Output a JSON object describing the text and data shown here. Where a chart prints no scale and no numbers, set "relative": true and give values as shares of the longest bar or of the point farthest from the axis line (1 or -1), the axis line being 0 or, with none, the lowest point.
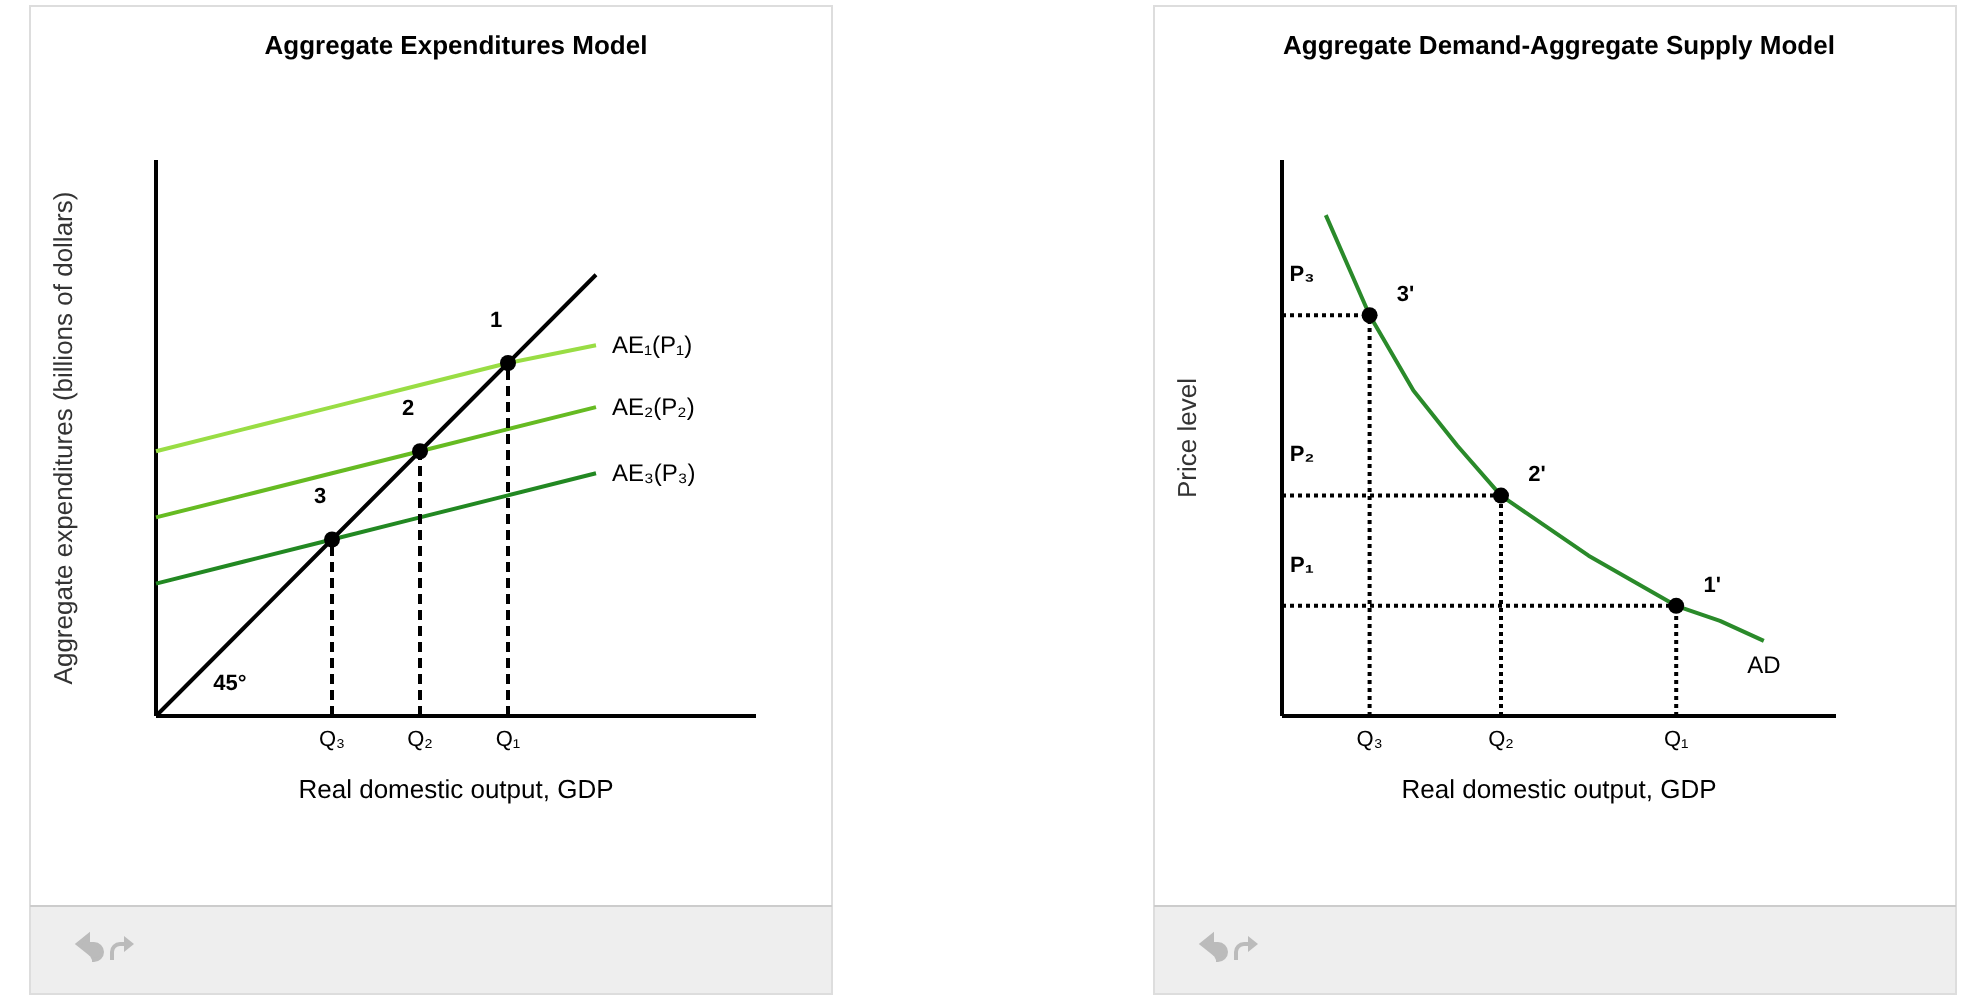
{
  "chart_data": [
    {
      "type": "line",
      "title": "Aggregate Expenditures Model",
      "xlabel": "Real domestic output, GDP",
      "ylabel": "Aggregate expenditures (billions of dollars)",
      "relative": true,
      "tick_labels": "x",
      "categories": [
        null,
        null,
        "Q₃",
        "Q₂",
        "Q₁",
        null
      ],
      "series": [
        {
          "color": "#99dd44",
          "values": [
            0.6,
            0.65,
            0.7,
            0.75,
            0.8,
            0.84
          ],
          "name": "AE₁(P₁)"
        },
        {
          "color": "#66bb22",
          "values": [
            0.45,
            0.5,
            0.55,
            0.6,
            0.65,
            0.7
          ],
          "name": "AE₂(P₂)"
        },
        {
          "color": "#228822",
          "values": [
            0.3,
            0.35,
            0.4,
            0.45,
            0.5,
            0.55
          ],
          "name": "AE₃(P₃)"
        },
        {
          "color": "#000000",
          "values": [
            0,
            0.2,
            0.4,
            0.6,
            0.8,
            1
          ]
        },
        {
          "type": "lollipop",
          "color": "#000000",
          "line_style": "dashed",
          "marker": "circle",
          "values": [
            null,
            null,
            0.4,
            0.6,
            0.8,
            null
          ]
        }
      ],
      "annotations": [
        {
          "text": "1",
          "x": "Q₁",
          "y": 0.8
        },
        {
          "text": "2",
          "x": "Q₂",
          "y": 0.6
        },
        {
          "text": "3",
          "x": "Q₃",
          "y": 0.4
        },
        "45°"
      ]
    },
    {
      "type": "line",
      "title": "Aggregate Demand-Aggregate Supply Model",
      "xlabel": "Real domestic output, GDP",
      "ylabel": "Price level",
      "relative": true,
      "tick_labels": "x",
      "categories": [
        null,
        null,
        "Q₃",
        null,
        null,
        "Q₂",
        null,
        null,
        null,
        "Q₁",
        null,
        null,
        null
      ],
      "series": [
        {
          "color": "#2a8a2a",
          "name": "AD",
          "values": [
            null,
            1,
            0.8,
            0.65,
            0.54,
            0.44,
            0.38,
            0.32,
            0.27,
            0.22,
            0.19,
            0.15,
            null
          ]
        },
        {
          "color": "#000000",
          "line_style": "dotted",
          "values": [
            0.8,
            0.8,
            0.8,
            null,
            null,
            null,
            null,
            null,
            null,
            null,
            null,
            null,
            null
          ]
        },
        {
          "color": "#000000",
          "line_style": "dotted",
          "values": [
            0.44,
            0.44,
            0.44,
            0.44,
            0.44,
            0.44,
            null,
            null,
            null,
            null,
            null,
            null,
            null
          ]
        },
        {
          "color": "#000000",
          "line_style": "dotted",
          "values": [
            0.22,
            0.22,
            0.22,
            0.22,
            0.22,
            0.22,
            0.22,
            0.22,
            0.22,
            0.22,
            null,
            null,
            null
          ]
        },
        {
          "type": "lollipop",
          "color": "#000000",
          "line_style": "dotted",
          "marker": "circle",
          "values": [
            null,
            null,
            0.8,
            null,
            null,
            0.44,
            null,
            null,
            null,
            0.22,
            null,
            null,
            null
          ]
        }
      ],
      "annotations": [
        {
          "text": "3'",
          "x": "Q₃",
          "y": 0.8
        },
        {
          "text": "2'",
          "x": "Q₂",
          "y": 0.44
        },
        {
          "text": "1'",
          "x": "Q₁",
          "y": 0.22
        },
        {
          "text": "P₃",
          "y": 0.8
        },
        {
          "text": "P₂",
          "y": 0.44
        },
        {
          "text": "P₁",
          "y": 0.22
        }
      ]
    }
  ]
}
